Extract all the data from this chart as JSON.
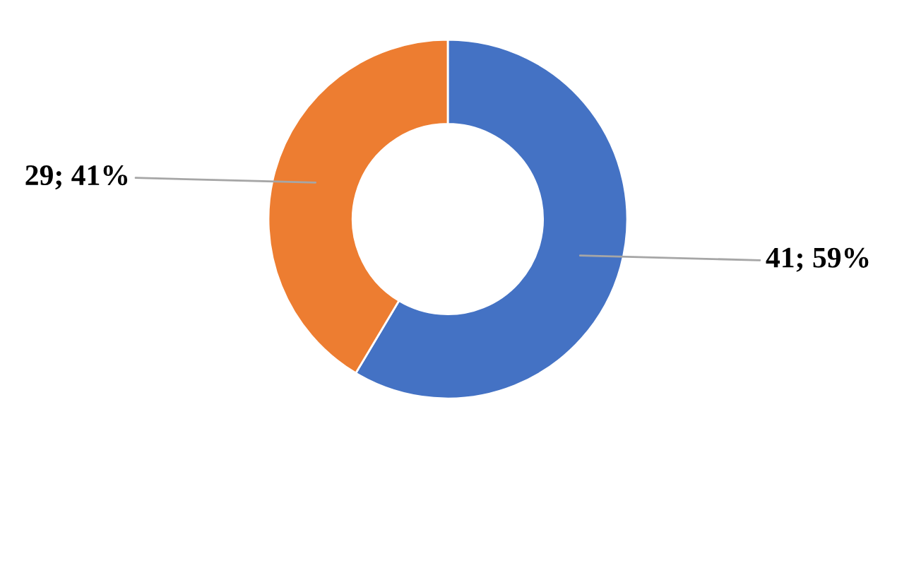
{
  "chart_data": {
    "type": "donut",
    "categories": [
      null,
      null
    ],
    "values": [
      41,
      29
    ],
    "colors": [
      "#4472c4",
      "#ed7d31"
    ],
    "value_labels": [
      "41; 59%",
      "29; 41%"
    ]
  }
}
